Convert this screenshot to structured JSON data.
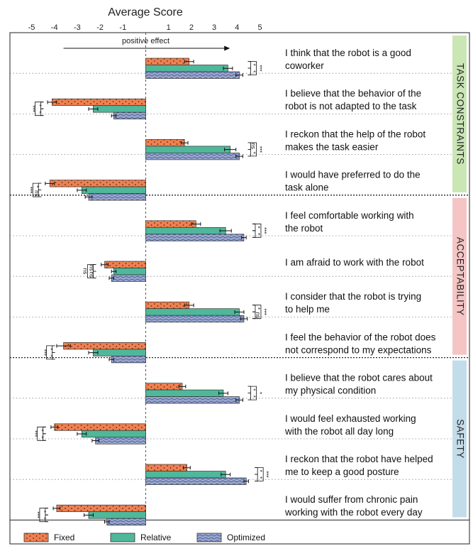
{
  "chart_data": {
    "type": "bar",
    "orientation": "horizontal",
    "title": "Average Score",
    "x_ticks": [
      "-5",
      "-4",
      "-3",
      "-2",
      "-1",
      "1",
      "2",
      "3",
      "4",
      "5"
    ],
    "xlim": [
      -5.5,
      5.5
    ],
    "arrow_label": "positive effect",
    "series": [
      {
        "name": "Fixed",
        "color": "#f08050",
        "pattern": "dots"
      },
      {
        "name": "Relative",
        "color": "#4fb89a",
        "pattern": "solid"
      },
      {
        "name": "Optimized",
        "color": "#9aa8d0",
        "pattern": "waves"
      }
    ],
    "groups": [
      {
        "label": "TASK CONSTRAINTS",
        "color": "#c9e6b4"
      },
      {
        "label": "ACCEPTABILITY",
        "color": "#f5c4c4"
      },
      {
        "label": "SAFETY",
        "color": "#c3dcea"
      }
    ],
    "categories": [
      {
        "group": 0,
        "line1": "I think that the robot is a good",
        "line2": "coworker",
        "values": [
          1.9,
          3.6,
          4.1
        ],
        "errors": [
          0.2,
          0.2,
          0.15
        ],
        "sig": [
          "*",
          "*",
          "***"
        ]
      },
      {
        "group": 0,
        "line1": "I believe that the behavior of the",
        "line2": "robot is not adapted to the task",
        "values": [
          -4.1,
          -2.3,
          -1.4
        ],
        "errors": [
          0.2,
          0.2,
          0.1
        ],
        "sig": [
          "*",
          "*",
          "***"
        ]
      },
      {
        "group": 0,
        "line1": "I reckon that the help of the robot",
        "line2": "makes the task easier",
        "values": [
          1.7,
          3.7,
          4.1
        ],
        "errors": [
          0.15,
          0.25,
          0.15
        ],
        "sig": [
          "ns",
          "*",
          "***"
        ]
      },
      {
        "group": 0,
        "line1": "I would have preferred to do the",
        "line2": "task alone",
        "values": [
          -4.2,
          -2.8,
          -2.5
        ],
        "errors": [
          0.2,
          0.2,
          0.15
        ],
        "sig": [
          "*",
          "ns",
          "***"
        ]
      },
      {
        "group": 1,
        "line1": "I feel comfortable working with",
        "line2": "the robot",
        "values": [
          2.2,
          3.5,
          4.3
        ],
        "errors": [
          0.2,
          0.25,
          0.1
        ],
        "sig": [
          "*",
          "*",
          "***"
        ]
      },
      {
        "group": 1,
        "line1": "I am afraid to work with the robot",
        "line2": "",
        "values": [
          -1.8,
          -1.4,
          -1.5
        ],
        "errors": [
          0.15,
          0.1,
          0.1
        ],
        "sig": [
          "ns",
          "ns",
          "ns"
        ]
      },
      {
        "group": 1,
        "line1": "I consider that the robot is trying",
        "line2": "to help me",
        "values": [
          1.9,
          4.1,
          4.3
        ],
        "errors": [
          0.2,
          0.2,
          0.15
        ],
        "sig": [
          "*",
          "ns",
          "***"
        ]
      },
      {
        "group": 1,
        "line1": "I feel the behavior of the robot does",
        "line2": "not correspond to my expectations",
        "values": [
          -3.6,
          -2.3,
          -1.5
        ],
        "errors": [
          0.3,
          0.2,
          0.1
        ],
        "sig": [
          "*",
          "*",
          "***"
        ]
      },
      {
        "group": 2,
        "line1": "I believe that the robot cares about",
        "line2": "my physical condition",
        "values": [
          1.6,
          3.4,
          4.1
        ],
        "errors": [
          0.15,
          0.2,
          0.15
        ],
        "sig": [
          "*",
          "*",
          "*"
        ]
      },
      {
        "group": 2,
        "line1": "I would feel exhausted working",
        "line2": "with the robot all day long",
        "values": [
          -4.0,
          -2.8,
          -2.2
        ],
        "errors": [
          0.15,
          0.2,
          0.15
        ],
        "sig": [
          "*",
          "*",
          "***"
        ]
      },
      {
        "group": 2,
        "line1": "I reckon that the robot have helped",
        "line2": "me to keep a good posture",
        "values": [
          1.8,
          3.5,
          4.4
        ],
        "errors": [
          0.15,
          0.2,
          0.1
        ],
        "sig": [
          "*",
          "*",
          "***"
        ]
      },
      {
        "group": 2,
        "line1": "I would suffer from chronic pain",
        "line2": "working with the robot every day",
        "values": [
          -3.9,
          -2.5,
          -1.7
        ],
        "errors": [
          0.15,
          0.2,
          0.1
        ],
        "sig": [
          "*",
          "*",
          "***"
        ]
      }
    ]
  }
}
